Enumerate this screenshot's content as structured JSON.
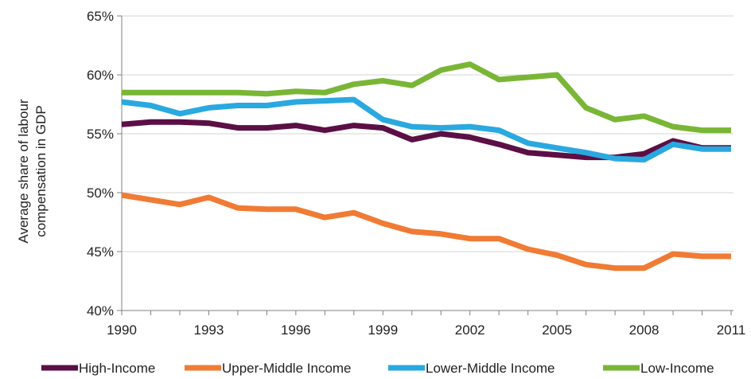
{
  "chart_data": {
    "type": "line",
    "title": "",
    "xlabel": "",
    "ylabel_lines": [
      "Average share of labour",
      "compensation in GDP"
    ],
    "x": [
      1990,
      1991,
      1992,
      1993,
      1994,
      1995,
      1996,
      1997,
      1998,
      1999,
      2000,
      2001,
      2002,
      2003,
      2004,
      2005,
      2006,
      2007,
      2008,
      2009,
      2010,
      2011
    ],
    "x_tick_labels": [
      "1990",
      "1993",
      "1996",
      "1999",
      "2002",
      "2005",
      "2008",
      "2011"
    ],
    "y_tick_labels": [
      "40%",
      "45%",
      "50%",
      "55%",
      "60%",
      "65%"
    ],
    "ylim": [
      40,
      65
    ],
    "y_unit": "%",
    "grid": "horizontal",
    "legend_position": "bottom",
    "series": [
      {
        "name": "High-Income",
        "color": "#5b0f45",
        "values": [
          55.8,
          56.0,
          56.0,
          55.9,
          55.5,
          55.5,
          55.7,
          55.3,
          55.7,
          55.5,
          54.5,
          55.0,
          54.7,
          54.1,
          53.4,
          53.2,
          53.0,
          53.0,
          53.3,
          54.4,
          53.8,
          53.8
        ]
      },
      {
        "name": "Upper-Middle Income",
        "color": "#f07b34",
        "values": [
          49.8,
          49.4,
          49.0,
          49.6,
          48.7,
          48.6,
          48.6,
          47.9,
          48.3,
          47.4,
          46.7,
          46.5,
          46.1,
          46.1,
          45.2,
          44.7,
          43.9,
          43.6,
          43.6,
          44.8,
          44.6,
          44.6
        ]
      },
      {
        "name": "Lower-Middle Income",
        "color": "#2aa8e0",
        "values": [
          57.7,
          57.4,
          56.7,
          57.2,
          57.4,
          57.4,
          57.7,
          57.8,
          57.9,
          56.2,
          55.6,
          55.5,
          55.6,
          55.3,
          54.2,
          53.8,
          53.4,
          52.9,
          52.8,
          54.1,
          53.7,
          53.7
        ]
      },
      {
        "name": "Low-Income",
        "color": "#7ab636",
        "values": [
          58.5,
          58.5,
          58.5,
          58.5,
          58.5,
          58.4,
          58.6,
          58.5,
          59.2,
          59.5,
          59.1,
          60.4,
          60.9,
          59.6,
          59.8,
          60.0,
          57.2,
          56.2,
          56.5,
          55.6,
          55.3,
          55.3
        ]
      }
    ]
  }
}
